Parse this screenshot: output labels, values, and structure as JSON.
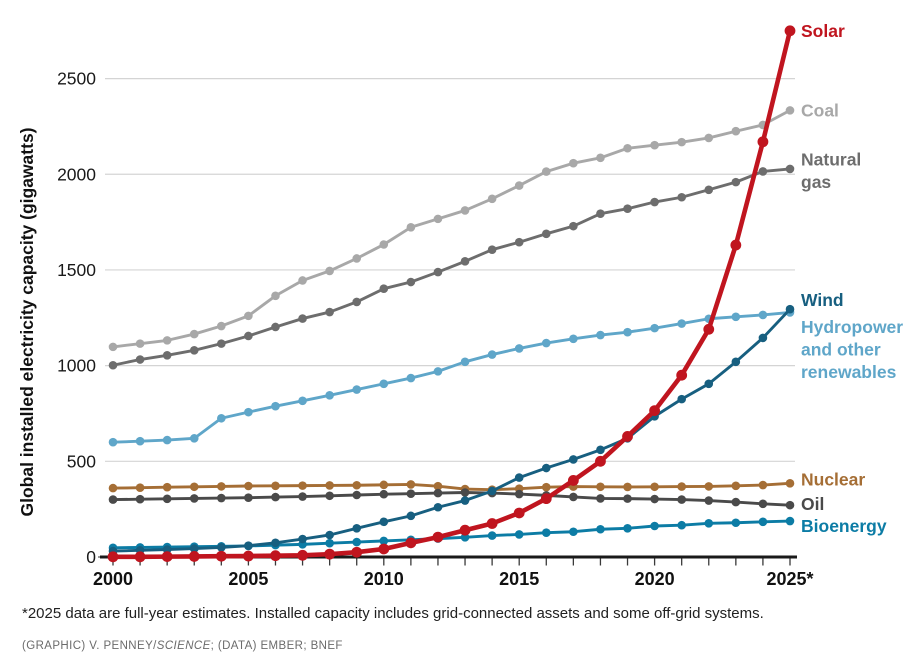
{
  "chart_data": {
    "type": "line",
    "title": "",
    "xlabel": "",
    "ylabel": "Global installed electricity capacity (gigawatts)",
    "x": [
      2000,
      2001,
      2002,
      2003,
      2004,
      2005,
      2006,
      2007,
      2008,
      2009,
      2010,
      2011,
      2012,
      2013,
      2014,
      2015,
      2016,
      2017,
      2018,
      2019,
      2020,
      2021,
      2022,
      2023,
      2024,
      2025
    ],
    "x_ticks": [
      {
        "year": 2000,
        "label": "2000"
      },
      {
        "year": 2005,
        "label": "2005"
      },
      {
        "year": 2010,
        "label": "2010"
      },
      {
        "year": 2015,
        "label": "2015"
      },
      {
        "year": 2020,
        "label": "2020"
      },
      {
        "year": 2025,
        "label": "2025*"
      }
    ],
    "y_ticks": [
      0,
      500,
      1000,
      1500,
      2000,
      2500
    ],
    "ylim": [
      0,
      2900
    ],
    "xlim": [
      2000,
      2025
    ],
    "grid": "horizontal",
    "legend_position": "right-end-labels",
    "units": "gigawatts",
    "series": [
      {
        "name": "Coal",
        "color": "#a8a8a8",
        "label_lines": [
          "Coal"
        ],
        "label_offset_y": 0,
        "emphasis": false,
        "values": [
          1098,
          1115,
          1132,
          1165,
          1207,
          1260,
          1365,
          1445,
          1495,
          1560,
          1633,
          1723,
          1767,
          1811,
          1872,
          1941,
          2014,
          2058,
          2086,
          2136,
          2152,
          2168,
          2190,
          2225,
          2258,
          2334
        ]
      },
      {
        "name": "Natural gas",
        "color": "#6d6d6d",
        "label_lines": [
          "Natural",
          "gas"
        ],
        "label_offset_y": 2,
        "emphasis": false,
        "values": [
          1002,
          1032,
          1054,
          1080,
          1115,
          1155,
          1202,
          1246,
          1280,
          1333,
          1402,
          1437,
          1489,
          1545,
          1606,
          1645,
          1689,
          1729,
          1794,
          1820,
          1855,
          1880,
          1919,
          1959,
          2015,
          2028
        ]
      },
      {
        "name": "Hydropower and other renewables",
        "color": "#5fa6c9",
        "label_lines": [
          "Hydropower",
          "and other",
          "renewables"
        ],
        "label_offset_y": 37,
        "emphasis": false,
        "values": [
          600,
          605,
          611,
          620,
          725,
          757,
          788,
          816,
          845,
          875,
          905,
          935,
          970,
          1020,
          1058,
          1090,
          1118,
          1140,
          1160,
          1175,
          1196,
          1220,
          1245,
          1255,
          1265,
          1278
        ]
      },
      {
        "name": "Nuclear",
        "color": "#a56e35",
        "label_lines": [
          "Nuclear"
        ],
        "label_offset_y": -4,
        "emphasis": false,
        "values": [
          360,
          362,
          365,
          367,
          369,
          371,
          372,
          373,
          374,
          375,
          377,
          379,
          370,
          355,
          352,
          357,
          365,
          368,
          367,
          366,
          367,
          368,
          369,
          372,
          376,
          385
        ]
      },
      {
        "name": "Oil",
        "color": "#4a4a4a",
        "label_lines": [
          "Oil"
        ],
        "label_offset_y": -1,
        "emphasis": false,
        "values": [
          300,
          302,
          304,
          306,
          308,
          310,
          313,
          316,
          320,
          324,
          328,
          331,
          334,
          337,
          334,
          329,
          322,
          314,
          306,
          305,
          303,
          300,
          295,
          287,
          278,
          271
        ]
      },
      {
        "name": "Bioenergy",
        "color": "#0c7ca5",
        "label_lines": [
          "Bioenergy"
        ],
        "label_offset_y": 5,
        "emphasis": false,
        "values": [
          48,
          50,
          52,
          54,
          56,
          58,
          62,
          66,
          72,
          78,
          84,
          90,
          96,
          103,
          112,
          118,
          127,
          132,
          145,
          150,
          162,
          166,
          176,
          179,
          184,
          188
        ]
      },
      {
        "name": "Wind",
        "color": "#175f80",
        "label_lines": [
          "Wind"
        ],
        "label_offset_y": -9,
        "emphasis": false,
        "values": [
          31,
          35,
          39,
          44,
          50,
          59,
          74,
          94,
          115,
          150,
          184,
          215,
          260,
          295,
          345,
          415,
          465,
          510,
          560,
          620,
          735,
          825,
          905,
          1020,
          1145,
          1295
        ]
      },
      {
        "name": "Solar",
        "color": "#c0151f",
        "label_lines": [
          "Solar"
        ],
        "label_offset_y": 0,
        "emphasis": true,
        "values": [
          1,
          1,
          2,
          3,
          4,
          5,
          7,
          9,
          15,
          25,
          42,
          74,
          104,
          140,
          175,
          230,
          305,
          400,
          500,
          630,
          765,
          950,
          1190,
          1630,
          2170,
          2750
        ]
      }
    ]
  },
  "footnote": "*2025 data are full-year estimates. Installed capacity includes grid-connected assets and some off-grid systems.",
  "credit": {
    "prefix": "(GRAPHIC) V. PENNEY/",
    "science": "SCIENCE",
    "suffix": "; (DATA) EMBER; BNEF"
  }
}
